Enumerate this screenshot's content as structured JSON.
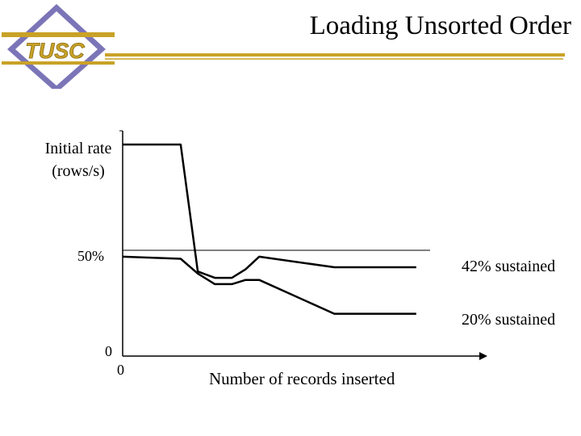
{
  "slide": {
    "title": "Loading Unsorted Order",
    "logo_text": "TUSC"
  },
  "colors": {
    "logo_gold": "#c9a227",
    "logo_purple": "#7b75b8",
    "rule_gold": "#c9a227",
    "line": "#000000"
  },
  "chart_data": {
    "type": "line",
    "title": "",
    "ylabel": "Initial rate (rows/s)",
    "xlabel": "Number of records inserted",
    "x_ticks": [
      "0"
    ],
    "y_ticks": [
      "0",
      "50%"
    ],
    "ylim": [
      0,
      100
    ],
    "xlim": [
      0,
      100
    ],
    "reference_line": {
      "y": 50,
      "label": "50%"
    },
    "series": [
      {
        "x": [
          0,
          17,
          22,
          27,
          32,
          36,
          40,
          62,
          86
        ],
        "y": [
          100,
          100,
          40,
          37,
          37,
          41,
          47,
          42,
          42
        ],
        "end_label": "42% sustained"
      },
      {
        "x": [
          0,
          17,
          22,
          27,
          32,
          36,
          40,
          62,
          86
        ],
        "y": [
          47,
          46,
          39,
          34,
          34,
          36,
          36,
          20,
          20
        ],
        "end_label": "20% sustained"
      }
    ],
    "annotations": [
      "42% sustained",
      "20% sustained"
    ]
  }
}
